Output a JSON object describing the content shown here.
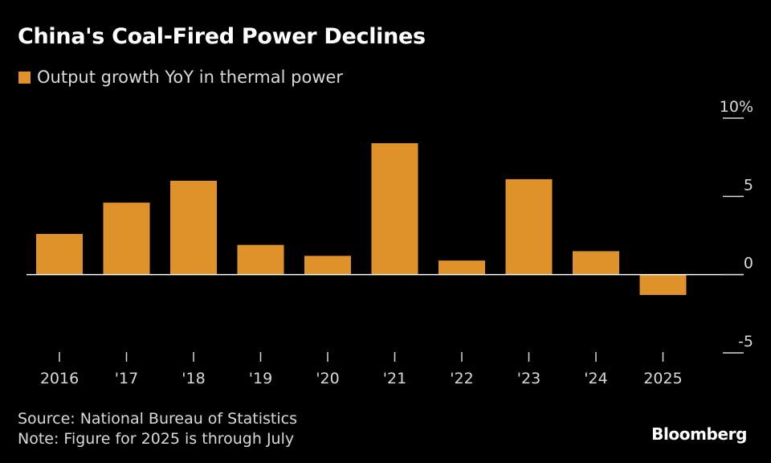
{
  "title": "China's Coal-Fired Power Declines",
  "legend": {
    "label": "Output growth YoY in thermal power"
  },
  "colors": {
    "bar": "#e0922a",
    "background": "#000000",
    "text": "#d9d9d9",
    "zero_line": "#ffffff"
  },
  "footer": {
    "source": "Source: National Bureau of Statistics",
    "note": "Note: Figure for 2025 is through July"
  },
  "brand": "Bloomberg",
  "chart_data": {
    "type": "bar",
    "categories": [
      "2016",
      "'17",
      "'18",
      "'19",
      "'20",
      "'21",
      "'22",
      "'23",
      "'24",
      "2025"
    ],
    "series": [
      {
        "name": "Output growth YoY in thermal power",
        "values": [
          2.6,
          4.6,
          6.0,
          1.9,
          1.2,
          8.4,
          0.9,
          6.1,
          1.5,
          -1.3
        ]
      }
    ],
    "y_ticks": [
      10,
      5,
      0,
      -5
    ],
    "y_tick_labels": [
      "10%",
      "5",
      "0",
      "-5"
    ],
    "ylim": [
      -5,
      10
    ],
    "y_axis_position": "right",
    "grid": false,
    "legend_position": "top-left"
  }
}
